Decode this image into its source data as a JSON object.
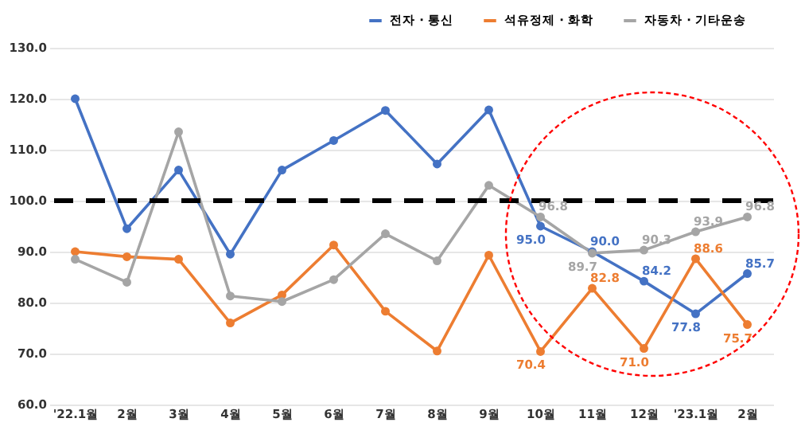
{
  "chart_data": {
    "type": "line",
    "categories": [
      "'22.1월",
      "2월",
      "3월",
      "4월",
      "5월",
      "6월",
      "7월",
      "8월",
      "9월",
      "10월",
      "11월",
      "12월",
      "'23.1월",
      "2월"
    ],
    "series": [
      {
        "name": "전자 · 통신",
        "color": "#4472c4",
        "values": [
          120,
          94.5,
          106,
          89.5,
          106,
          111.8,
          117.7,
          107.2,
          117.8,
          95.0,
          90.0,
          84.2,
          77.8,
          85.7
        ],
        "value_labels": [
          null,
          null,
          null,
          null,
          null,
          null,
          null,
          null,
          null,
          "95.0",
          "90.0",
          "84.2",
          "77.8",
          "85.7"
        ]
      },
      {
        "name": "석유정제 · 화학",
        "color": "#ed7d31",
        "values": [
          90,
          89,
          88.5,
          76,
          81.5,
          91.3,
          78.3,
          70.5,
          89.3,
          70.4,
          82.8,
          71.0,
          88.6,
          75.7
        ],
        "value_labels": [
          null,
          null,
          null,
          null,
          null,
          null,
          null,
          null,
          null,
          "70.4",
          "82.8",
          "71.0",
          "88.6",
          "75.7"
        ]
      },
      {
        "name": "자동차 · 기타운송",
        "color": "#a5a5a5",
        "values": [
          88.5,
          84,
          113.5,
          81.3,
          80.2,
          84.5,
          93.5,
          88.2,
          103,
          96.8,
          89.7,
          90.3,
          93.9,
          96.8
        ],
        "value_labels": [
          null,
          null,
          null,
          null,
          null,
          null,
          null,
          null,
          null,
          "96.8",
          "89.7",
          "90.3",
          "93.9",
          "96.8"
        ]
      }
    ],
    "ylim": [
      60,
      130
    ],
    "yticks": [
      {
        "value": 60,
        "label": "60.0"
      },
      {
        "value": 70,
        "label": "70.0"
      },
      {
        "value": 80,
        "label": "80.0"
      },
      {
        "value": 90,
        "label": "90.0"
      },
      {
        "value": 100,
        "label": "100.0"
      },
      {
        "value": 110,
        "label": "110.0"
      },
      {
        "value": 120,
        "label": "120.0"
      },
      {
        "value": 130,
        "label": "130.0"
      }
    ],
    "ref_lines": [
      {
        "axis": "y",
        "value": 100,
        "color": "#000000",
        "line_style": "dashed"
      }
    ],
    "grid": "y",
    "legend": "top right",
    "marker": "circle",
    "line_style": "solid"
  }
}
